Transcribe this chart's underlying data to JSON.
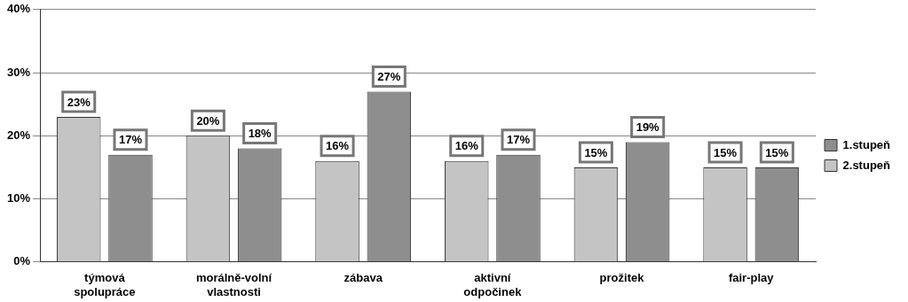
{
  "chart_data": {
    "type": "bar",
    "categories": [
      "týmová spolupráce",
      "morálně-volní vlastnosti",
      "zábava",
      "aktivní odpočinek",
      "prožitek",
      "fair-play"
    ],
    "series": [
      {
        "name": "2.stupeň",
        "color": "#c4c4c4",
        "values": [
          23,
          20,
          16,
          16,
          15,
          15
        ],
        "value_labels": [
          "23%",
          "20%",
          "16%",
          "16%",
          "15%",
          "15%"
        ]
      },
      {
        "name": "1.stupeň",
        "color": "#8e8e8e",
        "values": [
          17,
          18,
          27,
          17,
          19,
          15
        ],
        "value_labels": [
          "17%",
          "18%",
          "27%",
          "17%",
          "19%",
          "15%"
        ]
      }
    ],
    "ylim": [
      0,
      40
    ],
    "yticks": [
      {
        "value": 0,
        "label": "0%"
      },
      {
        "value": 10,
        "label": "10%"
      },
      {
        "value": 20,
        "label": "20%"
      },
      {
        "value": 30,
        "label": "30%"
      },
      {
        "value": 40,
        "label": "40%"
      }
    ],
    "grid": "y",
    "legend": "right"
  }
}
